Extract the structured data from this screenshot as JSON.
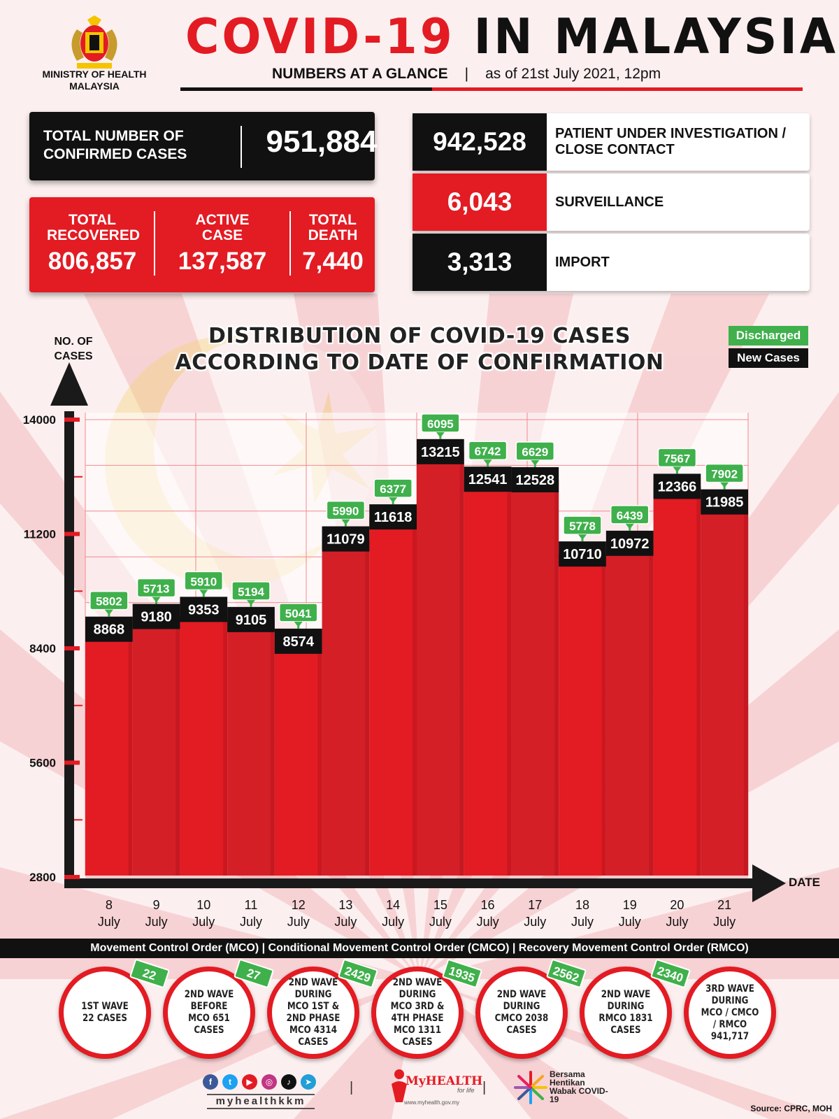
{
  "header": {
    "ministry": "MINISTRY OF HEALTH MALAYSIA",
    "title_red": "COVID-19",
    "title_black": "IN MALAYSIA",
    "subtitle": "NUMBERS AT A GLANCE",
    "separator": "|",
    "as_of": "as of 21st July 2021, 12pm"
  },
  "totals": {
    "confirmed_label": "TOTAL NUMBER OF CONFIRMED CASES",
    "confirmed_value": "951,884",
    "recovered_label": "TOTAL RECOVERED",
    "recovered_value": "806,857",
    "active_label": "ACTIVE CASE",
    "active_value": "137,587",
    "death_label": "TOTAL DEATH",
    "death_value": "7,440"
  },
  "categories": [
    {
      "value": "942,528",
      "label": "PATIENT UNDER INVESTIGATION / CLOSE CONTACT",
      "color": "#111111"
    },
    {
      "value": "6,043",
      "label": "SURVEILLANCE",
      "color": "#e31b23"
    },
    {
      "value": "3,313",
      "label": "IMPORT",
      "color": "#111111"
    }
  ],
  "chart_data": {
    "type": "bar",
    "title": "DISTRIBUTION OF COVID-19 CASES ACCORDING TO DATE OF CONFIRMATION",
    "ylabel": "NO. OF CASES",
    "xlabel": "DATE",
    "ylim": [
      2800,
      14000
    ],
    "yticks": [
      2800,
      5600,
      8400,
      11200,
      14000
    ],
    "grid": true,
    "legend_position": "top-right",
    "categories": [
      {
        "day": "8",
        "month": "July"
      },
      {
        "day": "9",
        "month": "July"
      },
      {
        "day": "10",
        "month": "July"
      },
      {
        "day": "11",
        "month": "July"
      },
      {
        "day": "12",
        "month": "July"
      },
      {
        "day": "13",
        "month": "July"
      },
      {
        "day": "14",
        "month": "July"
      },
      {
        "day": "15",
        "month": "July"
      },
      {
        "day": "16",
        "month": "July"
      },
      {
        "day": "17",
        "month": "July"
      },
      {
        "day": "18",
        "month": "July"
      },
      {
        "day": "19",
        "month": "July"
      },
      {
        "day": "20",
        "month": "July"
      },
      {
        "day": "21",
        "month": "July"
      }
    ],
    "series": [
      {
        "name": "New Cases",
        "color": "#111111",
        "values": [
          8868,
          9180,
          9353,
          9105,
          8574,
          11079,
          11618,
          13215,
          12541,
          12528,
          10710,
          10972,
          12366,
          11985
        ]
      },
      {
        "name": "Discharged",
        "color": "#3fb04b",
        "values": [
          5802,
          5713,
          5910,
          5194,
          5041,
          5990,
          6377,
          6095,
          6742,
          6629,
          5778,
          6439,
          7567,
          7902
        ]
      }
    ],
    "bar_color": "#e31b23"
  },
  "mco_bar": "Movement Control Order (MCO) | Conditional Movement Control Order (CMCO) | Recovery Movement Control Order (RMCO)",
  "waves": [
    {
      "text": "1ST WAVE 22 CASES",
      "badge": "22"
    },
    {
      "text": "2ND WAVE BEFORE MCO 651 CASES",
      "badge": "27"
    },
    {
      "text": "2ND WAVE DURING MCO 1ST & 2ND PHASE MCO 4314 CASES",
      "badge": "2429"
    },
    {
      "text": "2ND WAVE DURING MCO 3RD & 4TH PHASE MCO 1311 CASES",
      "badge": "1935"
    },
    {
      "text": "2ND WAVE DURING CMCO 2038 CASES",
      "badge": "2562"
    },
    {
      "text": "2ND WAVE DURING RMCO 1831 CASES",
      "badge": "2340"
    },
    {
      "text": "3RD WAVE DURING MCO / CMCO / RMCO 941,717",
      "badge": ""
    }
  ],
  "footer": {
    "handle": "myhealthkkm",
    "myhealth": "MyHEALTH",
    "myhealth_tag": "for life",
    "myhealth_url": "www.myhealth.gov.my",
    "bersama": "Bersama Hentikan Wabak COVID-19",
    "source": "Source: CPRC, MOH",
    "social_icons": [
      "facebook-icon",
      "twitter-icon",
      "youtube-icon",
      "instagram-icon",
      "tiktok-icon",
      "telegram-icon"
    ]
  }
}
